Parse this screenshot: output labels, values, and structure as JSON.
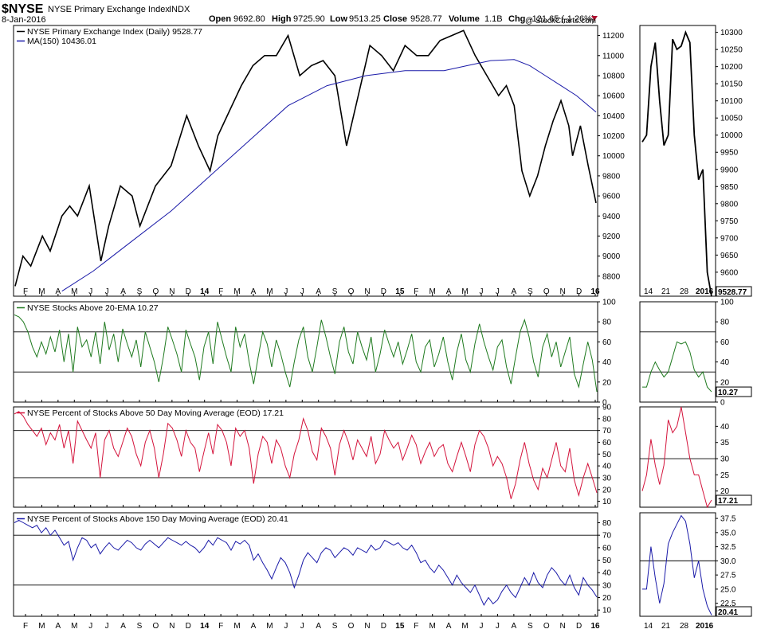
{
  "header": {
    "symbol": "$NYSE",
    "name": "NYSE Primary Exchange Index",
    "exchange": "INDX",
    "date": "8-Jan-2016",
    "open_label": "Open",
    "open": "9692.80",
    "high_label": "High",
    "high": "9725.90",
    "low_label": "Low",
    "low": "9513.25",
    "close_label": "Close",
    "close": "9528.77",
    "volume_label": "Volume",
    "volume": "1.1B",
    "chg_label": "Chg",
    "chg": "-121.65 (-1.26%)",
    "watermark": "@ StockCharts.com"
  },
  "x_axis_labels": [
    "F",
    "M",
    "A",
    "M",
    "J",
    "J",
    "A",
    "S",
    "O",
    "N",
    "D",
    "14",
    "F",
    "M",
    "A",
    "M",
    "J",
    "J",
    "A",
    "S",
    "O",
    "N",
    "D",
    "15",
    "F",
    "M",
    "A",
    "M",
    "J",
    "J",
    "A",
    "S",
    "O",
    "N",
    "D",
    "16"
  ],
  "zoom_x_labels": [
    "14",
    "21",
    "28",
    "2016"
  ],
  "colors": {
    "price": "#000000",
    "ma": "#1a1aa8",
    "ema20": "#1f7a1f",
    "pct50": "#d4143c",
    "pct150": "#1a1aa8",
    "hline": "#000080"
  },
  "chart_data": [
    {
      "type": "line",
      "panel": "price",
      "series": [
        {
          "name": "NYSE Primary Exchange Index (Daily) 9528.77",
          "points": [
            [
              0,
              8700
            ],
            [
              10,
              9000
            ],
            [
              20,
              8900
            ],
            [
              35,
              9200
            ],
            [
              45,
              9050
            ],
            [
              60,
              9400
            ],
            [
              70,
              9500
            ],
            [
              80,
              9400
            ],
            [
              95,
              9700
            ],
            [
              110,
              8950
            ],
            [
              120,
              9300
            ],
            [
              135,
              9700
            ],
            [
              150,
              9600
            ],
            [
              160,
              9300
            ],
            [
              180,
              9700
            ],
            [
              200,
              9900
            ],
            [
              210,
              10150
            ],
            [
              220,
              10400
            ],
            [
              235,
              10100
            ],
            [
              250,
              9850
            ],
            [
              260,
              10200
            ],
            [
              275,
              10450
            ],
            [
              290,
              10700
            ],
            [
              305,
              10900
            ],
            [
              320,
              11000
            ],
            [
              335,
              11000
            ],
            [
              350,
              11200
            ],
            [
              365,
              10800
            ],
            [
              380,
              10900
            ],
            [
              395,
              10950
            ],
            [
              410,
              10800
            ],
            [
              425,
              10100
            ],
            [
              440,
              10600
            ],
            [
              455,
              11100
            ],
            [
              470,
              11000
            ],
            [
              485,
              10850
            ],
            [
              500,
              11100
            ],
            [
              515,
              11000
            ],
            [
              530,
              11000
            ],
            [
              545,
              11150
            ],
            [
              560,
              11200
            ],
            [
              575,
              11250
            ],
            [
              590,
              11000
            ],
            [
              605,
              10800
            ],
            [
              620,
              10600
            ],
            [
              630,
              10700
            ],
            [
              640,
              10500
            ],
            [
              650,
              9850
            ],
            [
              660,
              9600
            ],
            [
              670,
              9800
            ],
            [
              680,
              10100
            ],
            [
              690,
              10350
            ],
            [
              700,
              10550
            ],
            [
              710,
              10300
            ],
            [
              715,
              10000
            ],
            [
              725,
              10300
            ],
            [
              735,
              9900
            ],
            [
              745,
              9530
            ]
          ]
        },
        {
          "name": "MA(150) 10436.01",
          "points": [
            [
              60,
              8650
            ],
            [
              100,
              8850
            ],
            [
              150,
              9150
            ],
            [
              200,
              9450
            ],
            [
              250,
              9800
            ],
            [
              300,
              10150
            ],
            [
              350,
              10500
            ],
            [
              400,
              10700
            ],
            [
              450,
              10800
            ],
            [
              500,
              10850
            ],
            [
              550,
              10850
            ],
            [
              580,
              10900
            ],
            [
              610,
              10950
            ],
            [
              640,
              10960
            ],
            [
              660,
              10900
            ],
            [
              680,
              10800
            ],
            [
              700,
              10700
            ],
            [
              720,
              10600
            ],
            [
              745,
              10436
            ]
          ]
        }
      ],
      "y_ticks": [
        8800,
        9000,
        9200,
        9400,
        9600,
        9800,
        10000,
        10200,
        10400,
        10600,
        10800,
        11000,
        11200
      ],
      "ylim": [
        8600,
        11300
      ]
    },
    {
      "type": "line",
      "panel": "ema20",
      "series": [
        {
          "name": "NYSE Stocks Above 20-EMA 10.27",
          "values": [
            87,
            85,
            80,
            70,
            55,
            45,
            60,
            48,
            65,
            50,
            72,
            40,
            68,
            30,
            75,
            55,
            62,
            45,
            70,
            38,
            80,
            52,
            68,
            40,
            73,
            58,
            45,
            62,
            35,
            70,
            55,
            40,
            20,
            45,
            75,
            62,
            48,
            30,
            72,
            58,
            45,
            22,
            55,
            70,
            38,
            80,
            62,
            45,
            30,
            75,
            55,
            68,
            40,
            18,
            45,
            70,
            58,
            35,
            62,
            48,
            30,
            15,
            40,
            62,
            75,
            45,
            30,
            55,
            82,
            65,
            45,
            28,
            60,
            75,
            50,
            38,
            70,
            55,
            42,
            65,
            30,
            48,
            72,
            58,
            45,
            60,
            38,
            52,
            68,
            40,
            30,
            55,
            62,
            35,
            48,
            65,
            40,
            22,
            50,
            68,
            42,
            30,
            58,
            78,
            60,
            45,
            32,
            55,
            62,
            35,
            18,
            45,
            70,
            82,
            65,
            40,
            25,
            55,
            68,
            45,
            60,
            35,
            50,
            65,
            28,
            15,
            38,
            60,
            42,
            10.27
          ]
        }
      ],
      "h_lines": [
        70,
        30
      ],
      "y_ticks": [
        0,
        20,
        40,
        60,
        80,
        100
      ],
      "ylim": [
        0,
        100
      ]
    },
    {
      "type": "line",
      "panel": "pct50",
      "series": [
        {
          "name": "NYSE Percent of Stocks Above 50 Day Moving Average (EOD) 17.21",
          "values": [
            84,
            86,
            82,
            75,
            70,
            65,
            72,
            58,
            68,
            62,
            75,
            55,
            70,
            42,
            78,
            70,
            62,
            55,
            68,
            30,
            62,
            70,
            55,
            48,
            60,
            72,
            65,
            50,
            40,
            60,
            70,
            55,
            30,
            50,
            76,
            72,
            62,
            48,
            70,
            60,
            55,
            35,
            52,
            68,
            50,
            75,
            70,
            60,
            40,
            72,
            65,
            70,
            55,
            25,
            50,
            65,
            60,
            42,
            62,
            55,
            40,
            30,
            50,
            62,
            80,
            70,
            52,
            45,
            72,
            65,
            55,
            32,
            58,
            70,
            60,
            45,
            62,
            55,
            48,
            65,
            42,
            50,
            70,
            62,
            55,
            60,
            45,
            55,
            66,
            58,
            42,
            52,
            60,
            48,
            55,
            58,
            42,
            35,
            48,
            60,
            48,
            35,
            58,
            70,
            65,
            55,
            40,
            48,
            42,
            30,
            12,
            25,
            45,
            60,
            42,
            28,
            20,
            38,
            30,
            45,
            60,
            40,
            35,
            55,
            28,
            15,
            30,
            42,
            30,
            17.21
          ]
        }
      ],
      "h_lines": [
        70,
        30
      ],
      "y_ticks": [
        10,
        20,
        30,
        40,
        50,
        60,
        70,
        80,
        90
      ],
      "ylim": [
        5,
        90
      ]
    },
    {
      "type": "line",
      "panel": "pct150",
      "series": [
        {
          "name": "NYSE Percent of Stocks Above 150 Day Moving Average (EOD) 20.41",
          "values": [
            80,
            82,
            80,
            78,
            76,
            78,
            72,
            76,
            70,
            74,
            68,
            62,
            65,
            50,
            60,
            68,
            66,
            60,
            63,
            55,
            60,
            64,
            60,
            58,
            62,
            66,
            64,
            60,
            58,
            63,
            66,
            63,
            60,
            64,
            68,
            66,
            64,
            62,
            65,
            62,
            60,
            56,
            60,
            66,
            62,
            68,
            66,
            64,
            58,
            65,
            63,
            66,
            62,
            50,
            55,
            48,
            42,
            35,
            44,
            52,
            48,
            40,
            28,
            38,
            50,
            56,
            52,
            48,
            56,
            60,
            58,
            52,
            56,
            60,
            58,
            54,
            60,
            58,
            56,
            62,
            58,
            60,
            66,
            64,
            62,
            64,
            60,
            58,
            62,
            56,
            48,
            50,
            44,
            40,
            46,
            42,
            36,
            30,
            38,
            32,
            28,
            24,
            30,
            22,
            14,
            20,
            15,
            18,
            25,
            30,
            24,
            20,
            28,
            36,
            30,
            40,
            32,
            28,
            38,
            44,
            40,
            34,
            30,
            38,
            28,
            22,
            36,
            30,
            26,
            20.41
          ]
        }
      ],
      "h_lines": [
        70,
        30
      ],
      "y_ticks": [
        10,
        20,
        30,
        40,
        50,
        60,
        70,
        80
      ],
      "ylim": [
        5,
        88
      ]
    }
  ],
  "zoom": {
    "price": {
      "values": [
        9980,
        10000,
        10200,
        10270,
        10100,
        9970,
        10000,
        10280,
        10250,
        10260,
        10300,
        10270,
        10000,
        9870,
        9900,
        9600,
        9528.77
      ],
      "ticks": [
        9550,
        9600,
        9650,
        9700,
        9750,
        9800,
        9850,
        9900,
        9950,
        10000,
        10050,
        10100,
        10150,
        10200,
        10250,
        10300
      ],
      "ylim": [
        9530,
        10320
      ],
      "last_label": "9528.77"
    },
    "ema20": {
      "values": [
        15,
        15,
        30,
        40,
        32,
        25,
        30,
        45,
        60,
        58,
        60,
        50,
        32,
        25,
        30,
        15,
        10.27
      ],
      "ticks": [
        0,
        20,
        40,
        60,
        80,
        100
      ],
      "ylim": [
        0,
        100
      ],
      "last_label": "10.27"
    },
    "pct50": {
      "values": [
        20,
        25,
        36,
        28,
        22,
        28,
        42,
        38,
        40,
        46,
        38,
        30,
        25,
        25,
        20,
        15,
        17.21
      ],
      "ticks": [
        20,
        25,
        30,
        35,
        40
      ],
      "ylim": [
        15,
        46
      ],
      "last_label": "17.21"
    },
    "pct150": {
      "values": [
        25,
        25,
        32.5,
        27,
        22.5,
        26,
        33,
        35,
        36.5,
        38,
        37,
        33,
        27,
        30,
        25,
        22,
        20.41
      ],
      "ticks": [
        22.5,
        25.0,
        27.5,
        30.0,
        32.5,
        35.0,
        37.5
      ],
      "ylim": [
        20.2,
        38.5
      ],
      "last_label": "20.41"
    }
  },
  "zoom_h_lines": {
    "ema20": [
      70,
      30
    ],
    "pct50": [
      30
    ],
    "pct150": [
      30
    ]
  }
}
